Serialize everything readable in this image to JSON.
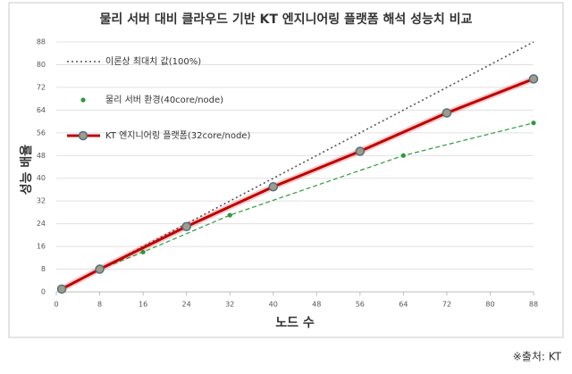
{
  "chart_data": {
    "type": "line",
    "title": "물리 서버 대비 클라우드 기반 KT 엔지니어링 플랫폼 해석 성능치 비교",
    "x_label": "노드 수",
    "y_label": "성능 배율",
    "source": "※출처: KT",
    "xlim": [
      0,
      88
    ],
    "ylim": [
      0,
      88
    ],
    "xticks": [
      0,
      8,
      16,
      24,
      32,
      40,
      48,
      56,
      64,
      72,
      80,
      88
    ],
    "yticks": [
      0,
      8,
      16,
      24,
      32,
      40,
      48,
      56,
      64,
      72,
      80,
      88
    ],
    "grid": true,
    "series": [
      {
        "name": "이론상 최대치 값(100%)",
        "color": "#555555",
        "style": "dotted",
        "markers": false,
        "x": [
          1,
          88
        ],
        "values": [
          1,
          88
        ]
      },
      {
        "name": "물리 서버 환경(40core/node)",
        "color": "#2e9a3e",
        "style": "dashed",
        "markers": true,
        "x": [
          1,
          8,
          16,
          32,
          64,
          88
        ],
        "values": [
          1,
          8,
          14,
          27,
          48,
          59.5
        ]
      },
      {
        "name": "KT 엔지니어링 플랫폼(32core/node)",
        "color": "#c00000",
        "style": "solid",
        "markers": true,
        "x": [
          1,
          8,
          24,
          40,
          56,
          72,
          88
        ],
        "values": [
          1,
          8,
          23,
          37,
          49.5,
          63,
          75
        ]
      }
    ]
  }
}
